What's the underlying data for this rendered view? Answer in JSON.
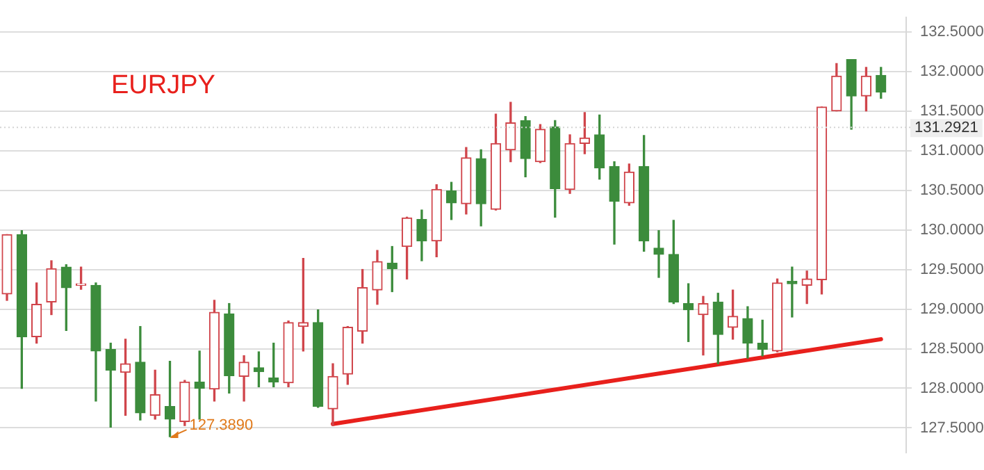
{
  "chart_data": {
    "type": "candlestick",
    "title": "EURJPY",
    "categories": [
      null,
      null,
      null,
      null,
      null,
      null,
      null,
      null,
      null,
      null,
      null,
      null,
      null,
      null,
      null,
      null,
      null,
      null,
      null,
      null,
      null,
      null,
      null,
      null,
      null,
      null,
      null,
      null,
      null,
      null,
      null,
      null,
      null,
      null,
      null,
      null,
      null,
      null,
      null,
      null,
      null,
      null,
      null,
      null,
      null,
      null,
      null,
      null,
      null,
      null,
      null,
      null,
      null,
      null,
      null,
      null,
      null,
      null,
      null,
      null
    ],
    "ohlc": [
      [
        129.19,
        129.94,
        129.11,
        129.94
      ],
      [
        129.94,
        129.99,
        128.0,
        128.65
      ],
      [
        128.65,
        129.33,
        128.57,
        129.06
      ],
      [
        129.09,
        129.61,
        128.93,
        129.51
      ],
      [
        129.53,
        129.56,
        128.73,
        129.27
      ],
      [
        129.3,
        129.53,
        129.25,
        129.32
      ],
      [
        129.3,
        129.33,
        127.84,
        128.47
      ],
      [
        128.49,
        128.57,
        127.51,
        128.23
      ],
      [
        128.2,
        128.62,
        127.66,
        128.31
      ],
      [
        128.33,
        128.78,
        127.6,
        127.69
      ],
      [
        127.66,
        128.23,
        127.61,
        127.92
      ],
      [
        127.77,
        128.34,
        127.389,
        127.61
      ],
      [
        127.58,
        128.1,
        127.53,
        128.08
      ],
      [
        128.08,
        128.47,
        127.61,
        128.0
      ],
      [
        127.99,
        129.11,
        127.84,
        128.96
      ],
      [
        128.94,
        129.07,
        127.94,
        128.16
      ],
      [
        128.15,
        128.41,
        127.84,
        128.33
      ],
      [
        128.26,
        128.46,
        128.02,
        128.21
      ],
      [
        128.13,
        128.57,
        128.02,
        128.08
      ],
      [
        128.07,
        128.85,
        128.02,
        128.83
      ],
      [
        128.78,
        129.64,
        128.47,
        128.83
      ],
      [
        128.83,
        128.99,
        127.76,
        127.77
      ],
      [
        127.74,
        128.31,
        127.53,
        128.15
      ],
      [
        128.18,
        128.78,
        128.05,
        128.77
      ],
      [
        128.72,
        129.5,
        128.57,
        129.27
      ],
      [
        129.24,
        129.74,
        129.06,
        129.6
      ],
      [
        129.58,
        129.79,
        129.22,
        129.51
      ],
      [
        129.79,
        130.16,
        129.38,
        130.15
      ],
      [
        130.13,
        130.25,
        129.61,
        129.86
      ],
      [
        129.86,
        130.57,
        129.66,
        130.51
      ],
      [
        130.49,
        130.6,
        130.13,
        130.34
      ],
      [
        130.33,
        131.04,
        130.2,
        130.91
      ],
      [
        130.9,
        131.01,
        130.05,
        130.33
      ],
      [
        130.26,
        131.46,
        130.25,
        131.09
      ],
      [
        131.01,
        131.61,
        130.86,
        131.35
      ],
      [
        131.38,
        131.43,
        130.67,
        130.9
      ],
      [
        130.86,
        131.33,
        130.85,
        131.27
      ],
      [
        131.3,
        131.38,
        130.16,
        130.52
      ],
      [
        130.51,
        131.2,
        130.46,
        131.09
      ],
      [
        131.09,
        131.48,
        130.96,
        131.16
      ],
      [
        131.2,
        131.45,
        130.64,
        130.78
      ],
      [
        130.8,
        130.86,
        129.82,
        130.36
      ],
      [
        130.34,
        130.83,
        130.31,
        130.73
      ],
      [
        130.8,
        131.19,
        129.73,
        129.86
      ],
      [
        129.77,
        129.99,
        129.4,
        129.69
      ],
      [
        129.69,
        130.12,
        129.07,
        129.09
      ],
      [
        129.07,
        129.32,
        128.59,
        128.99
      ],
      [
        128.93,
        129.16,
        128.42,
        129.07
      ],
      [
        129.09,
        129.2,
        128.31,
        128.68
      ],
      [
        128.77,
        129.24,
        128.62,
        128.91
      ],
      [
        128.88,
        129.03,
        128.38,
        128.57
      ],
      [
        128.57,
        128.86,
        128.41,
        128.49
      ],
      [
        128.47,
        129.38,
        128.46,
        129.33
      ],
      [
        129.35,
        129.53,
        128.9,
        129.32
      ],
      [
        129.3,
        129.48,
        129.07,
        129.38
      ],
      [
        129.37,
        131.55,
        129.19,
        131.55
      ],
      [
        131.5,
        132.1,
        131.5,
        131.94
      ],
      [
        132.15,
        132.15,
        131.27,
        131.69
      ],
      [
        131.69,
        132.05,
        131.5,
        131.94
      ],
      [
        131.95,
        132.05,
        131.66,
        131.74
      ]
    ],
    "colors": [
      "#d0454b",
      "#3c8c3c",
      "#d0454b",
      "#d0454b",
      "#3c8c3c",
      "#d0454b",
      "#3c8c3c",
      "#3c8c3c",
      "#d0454b",
      "#3c8c3c",
      "#d0454b",
      "#3c8c3c",
      "#d0454b",
      "#3c8c3c",
      "#d0454b",
      "#3c8c3c",
      "#d0454b",
      "#3c8c3c",
      "#3c8c3c",
      "#d0454b",
      "#d0454b",
      "#3c8c3c",
      "#d0454b",
      "#d0454b",
      "#d0454b",
      "#d0454b",
      "#3c8c3c",
      "#d0454b",
      "#3c8c3c",
      "#d0454b",
      "#3c8c3c",
      "#d0454b",
      "#3c8c3c",
      "#d0454b",
      "#d0454b",
      "#3c8c3c",
      "#d0454b",
      "#3c8c3c",
      "#d0454b",
      "#d0454b",
      "#3c8c3c",
      "#3c8c3c",
      "#d0454b",
      "#3c8c3c",
      "#3c8c3c",
      "#3c8c3c",
      "#3c8c3c",
      "#d0454b",
      "#3c8c3c",
      "#d0454b",
      "#3c8c3c",
      "#3c8c3c",
      "#d0454b",
      "#3c8c3c",
      "#d0454b",
      "#d0454b",
      "#d0454b",
      "#3c8c3c",
      "#d0454b",
      "#3c8c3c"
    ],
    "series": [
      {
        "type": "line",
        "color": "#e8201c",
        "values": [
          null,
          null,
          null,
          null,
          null,
          null,
          null,
          null,
          null,
          null,
          null,
          null,
          null,
          null,
          null,
          null,
          null,
          null,
          null,
          null,
          null,
          null,
          127.55,
          null,
          null,
          null,
          null,
          null,
          null,
          null,
          null,
          null,
          null,
          null,
          null,
          null,
          null,
          null,
          null,
          null,
          null,
          null,
          null,
          null,
          null,
          null,
          null,
          null,
          null,
          null,
          null,
          null,
          null,
          null,
          null,
          null,
          null,
          null,
          null,
          128.62
        ]
      }
    ],
    "ylim": [
      127.19,
      132.68
    ],
    "yticks": [
      {
        "value": 127.5,
        "label": "127.5000"
      },
      {
        "value": 128,
        "label": "128.0000"
      },
      {
        "value": 128.5,
        "label": "128.5000"
      },
      {
        "value": 129,
        "label": "129.0000"
      },
      {
        "value": 129.5,
        "label": "129.5000"
      },
      {
        "value": 130,
        "label": "130.0000"
      },
      {
        "value": 130.5,
        "label": "130.5000"
      },
      {
        "value": 131,
        "label": "131.0000"
      },
      {
        "value": 131.5,
        "label": "131.5000"
      },
      {
        "value": 132,
        "label": "132.0000"
      },
      {
        "value": 132.5,
        "label": "132.5000"
      }
    ],
    "ref_lines": [
      {
        "axis": "y",
        "value": 131.2921,
        "label": "131.2921"
      }
    ],
    "annotations": [
      "127.3890"
    ],
    "grid": "y",
    "legend": false,
    "tick_labels": "y"
  }
}
